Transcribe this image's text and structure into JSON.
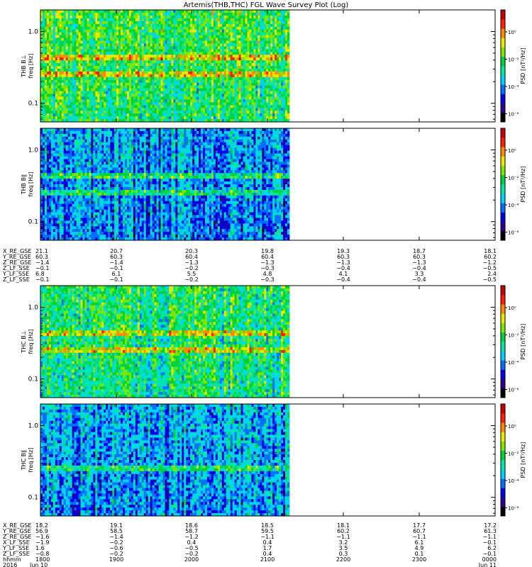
{
  "title": "Artemis(THB,THC) FGL Wave Survey Plot (Log)",
  "chart_data": {
    "type": "heatmap",
    "title": "Artemis(THB,THC) FGL Wave Survey Plot (Log)",
    "x_ticks": [
      "1800",
      "1900",
      "2000",
      "2100",
      "2200",
      "2300",
      "0000"
    ],
    "xlim_hhmm": [
      "1800",
      "0000"
    ],
    "data_coverage_hhmm": [
      "1800",
      "~2115"
    ],
    "ylim_hz": [
      0.055,
      2.0
    ],
    "yscale": "log",
    "y_ticks": [
      "1.0",
      "0.1"
    ],
    "colorbar": {
      "label": "PSD [nT²/Hz]",
      "scale": "log",
      "ticks": [
        "10⁰",
        "10⁻²",
        "10⁻⁴",
        "10⁻⁶"
      ],
      "colors": [
        "#000000",
        "#30008a",
        "#0000e6",
        "#0070ff",
        "#00d2ff",
        "#00e8a0",
        "#00d23c",
        "#7ee600",
        "#e8e800",
        "#ff8a00",
        "#ff1e00",
        "#c40000"
      ]
    },
    "panels": [
      {
        "ylabel": "THB B⊥",
        "ylabel_unit": "freq [Hz]",
        "cb_ticks": [
          "10⁰",
          "10⁻²",
          "10⁻⁴",
          "10⁻⁶"
        ],
        "level": 0.55,
        "bands_hz": [
          0.45,
          0.27
        ]
      },
      {
        "ylabel": "THB B∥",
        "ylabel_unit": "freq [Hz]",
        "cb_ticks": [
          "10⁰",
          "10⁻²",
          "10⁻⁴",
          "10⁻⁶"
        ],
        "level": 0.33,
        "bands_hz": [
          0.45,
          0.27
        ]
      },
      {
        "ylabel": "THC B⊥",
        "ylabel_unit": "freq [Hz]",
        "cb_ticks": [
          "10⁰",
          "10⁻²",
          "10⁻⁴",
          "10⁻⁶"
        ],
        "level": 0.52,
        "bands_hz": [
          0.26,
          0.45
        ]
      },
      {
        "ylabel": "THC B∥",
        "ylabel_unit": "freq [Hz]",
        "cb_ticks": [
          "10⁰",
          "10⁻²",
          "10⁻⁴",
          "10⁻⁶"
        ],
        "level": 0.36,
        "bands_hz": [
          0.26
        ]
      }
    ]
  },
  "ephem1": {
    "labels": [
      "X_RE_GSE",
      "Y_RE_GSE",
      "Z_RE_GSE",
      "Z_LF_SSE",
      "Y_LF_SSE",
      "Z_LF_SSE"
    ],
    "columns": [
      [
        "21.1",
        "60.3",
        "-1.4",
        "-0.1",
        "6.8",
        "-0.1"
      ],
      [
        "20.7",
        "60.3",
        "-1.4",
        "-0.1",
        "6.1",
        "-0.1"
      ],
      [
        "20.3",
        "60.4",
        "-1.3",
        "-0.2",
        "5.5",
        "-0.2"
      ],
      [
        "19.8",
        "60.4",
        "-1.3",
        "-0.3",
        "4.8",
        "-0.3"
      ],
      [
        "19.3",
        "60.3",
        "-1.3",
        "-0.4",
        "4.1",
        "-0.4"
      ],
      [
        "18.7",
        "60.3",
        "-1.3",
        "-0.4",
        "3.3",
        "-0.4"
      ],
      [
        "18.1",
        "60.2",
        "-1.2",
        "-0.5",
        "2.4",
        "-0.5"
      ]
    ]
  },
  "ephem2": {
    "labels": [
      "X_RE_GSE",
      "Y_RE_GSE",
      "Z_RE_GSE",
      "X_LF_SSE",
      "Y_LF_SSE",
      "Z_LF_SSE"
    ],
    "columns": [
      [
        "18.2",
        "56.9",
        "-1.6",
        "-1.9",
        "1.6",
        "-0.8"
      ],
      [
        "19.1",
        "58.5",
        "-1.4",
        "-0.2",
        "-0.6",
        "-0.2"
      ],
      [
        "18.6",
        "58.7",
        "-1.2",
        "0.4",
        "-0.5",
        "-0.2"
      ],
      [
        "18.5",
        "59.5",
        "-1.1",
        "0.4",
        "1.7",
        "0.4"
      ],
      [
        "18.1",
        "60.2",
        "-1.1",
        "3.2",
        "3.5",
        "0.3"
      ],
      [
        "17.7",
        "60.7",
        "-1.1",
        "6.1",
        "4.9",
        "0.1"
      ],
      [
        "17.2",
        "61.3",
        "-1.1",
        "-0.1",
        "6.2",
        "-0.1"
      ]
    ]
  },
  "time_axis": {
    "label_time": "hhmm",
    "label_year": "2016",
    "ticks": [
      "1800",
      "1900",
      "2000",
      "2100",
      "2200",
      "2300",
      "0000"
    ],
    "dates": [
      "Jun 10",
      "",
      "",
      "",
      "",
      "",
      "Jun 11"
    ]
  }
}
